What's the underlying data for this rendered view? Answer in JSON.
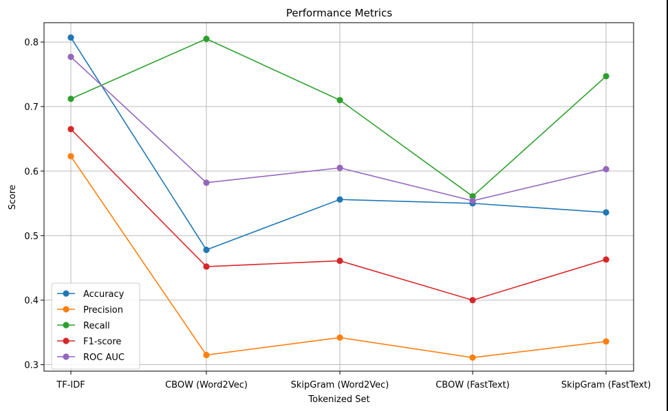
{
  "chart_data": {
    "type": "line",
    "title": "Performance Metrics",
    "xlabel": "Tokenized Set",
    "ylabel": "Score",
    "categories": [
      "TF-IDF",
      "CBOW (Word2Vec)",
      "SkipGram (Word2Vec)",
      "CBOW (FastText)",
      "SkipGram (FastText)"
    ],
    "ylim": [
      0.29,
      0.83
    ],
    "yticks": [
      0.3,
      0.4,
      0.5,
      0.6,
      0.7,
      0.8
    ],
    "ytick_labels": [
      "0.3",
      "0.4",
      "0.5",
      "0.6",
      "0.7",
      "0.8"
    ],
    "grid": true,
    "legend_position": "lower-left",
    "markers": "circle",
    "series": [
      {
        "name": "Accuracy",
        "color": "#1f77b4",
        "values": [
          0.807,
          0.478,
          0.556,
          0.55,
          0.536
        ]
      },
      {
        "name": "Precision",
        "color": "#ff7f0e",
        "values": [
          0.623,
          0.315,
          0.342,
          0.311,
          0.336
        ]
      },
      {
        "name": "Recall",
        "color": "#2ca02c",
        "values": [
          0.712,
          0.805,
          0.71,
          0.561,
          0.747
        ]
      },
      {
        "name": "F1-score",
        "color": "#d62728",
        "values": [
          0.665,
          0.452,
          0.461,
          0.4,
          0.463
        ]
      },
      {
        "name": "ROC AUC",
        "color": "#9467bd",
        "values": [
          0.777,
          0.582,
          0.605,
          0.554,
          0.603
        ]
      }
    ]
  }
}
